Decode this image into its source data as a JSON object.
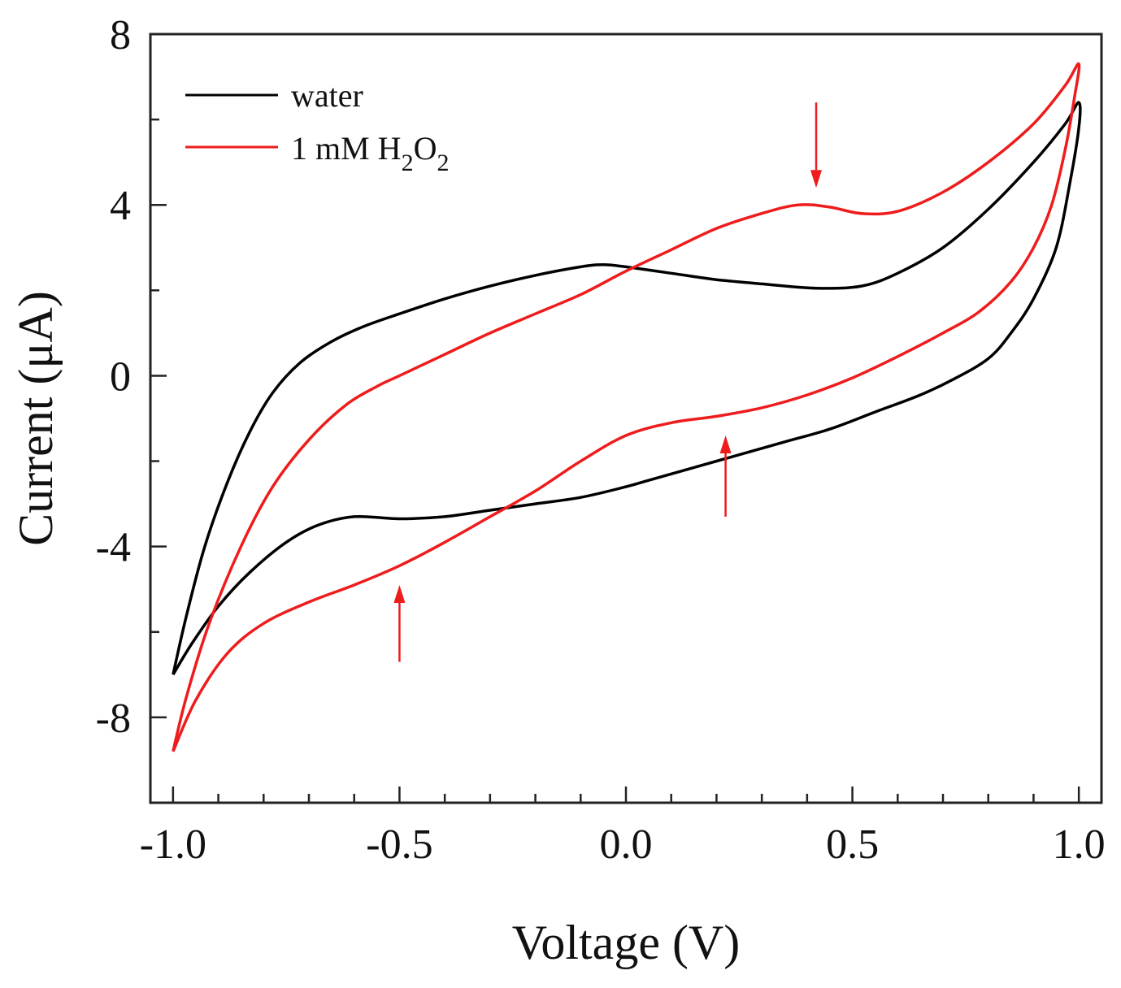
{
  "chart_data": {
    "type": "line",
    "title": "",
    "xlabel": "Voltage (V)",
    "ylabel": "Current (μA)",
    "xlim": [
      -1.05,
      1.05
    ],
    "ylim": [
      -10,
      8
    ],
    "xticks": [
      -1.0,
      -0.5,
      0.0,
      0.5,
      1.0
    ],
    "xtick_labels": [
      "-1.0",
      "-0.5",
      "0.0",
      "0.5",
      "1.0"
    ],
    "yticks": [
      -8,
      -4,
      0,
      4,
      8
    ],
    "ytick_labels": [
      "-8",
      "-4",
      "0",
      "4",
      "8"
    ],
    "grid": false,
    "legend_position": "top-left",
    "series": [
      {
        "name": "water",
        "color": "#000000",
        "points": [
          [
            -1.0,
            -7.0
          ],
          [
            -0.97,
            -5.6
          ],
          [
            -0.93,
            -4.0
          ],
          [
            -0.88,
            -2.5
          ],
          [
            -0.83,
            -1.3
          ],
          [
            -0.78,
            -0.4
          ],
          [
            -0.72,
            0.3
          ],
          [
            -0.65,
            0.8
          ],
          [
            -0.58,
            1.15
          ],
          [
            -0.5,
            1.45
          ],
          [
            -0.4,
            1.8
          ],
          [
            -0.3,
            2.1
          ],
          [
            -0.2,
            2.35
          ],
          [
            -0.1,
            2.55
          ],
          [
            -0.05,
            2.6
          ],
          [
            0.0,
            2.55
          ],
          [
            0.1,
            2.4
          ],
          [
            0.2,
            2.25
          ],
          [
            0.3,
            2.15
          ],
          [
            0.42,
            2.05
          ],
          [
            0.52,
            2.1
          ],
          [
            0.6,
            2.4
          ],
          [
            0.7,
            3.0
          ],
          [
            0.8,
            3.9
          ],
          [
            0.9,
            5.0
          ],
          [
            0.97,
            5.9
          ],
          [
            1.0,
            6.4
          ],
          [
            1.0,
            5.8
          ],
          [
            0.98,
            4.5
          ],
          [
            0.95,
            3.0
          ],
          [
            0.9,
            1.8
          ],
          [
            0.85,
            1.0
          ],
          [
            0.8,
            0.4
          ],
          [
            0.72,
            -0.1
          ],
          [
            0.65,
            -0.45
          ],
          [
            0.55,
            -0.85
          ],
          [
            0.45,
            -1.25
          ],
          [
            0.35,
            -1.55
          ],
          [
            0.25,
            -1.85
          ],
          [
            0.15,
            -2.15
          ],
          [
            0.05,
            -2.45
          ],
          [
            0.0,
            -2.6
          ],
          [
            -0.1,
            -2.85
          ],
          [
            -0.2,
            -3.0
          ],
          [
            -0.3,
            -3.15
          ],
          [
            -0.4,
            -3.3
          ],
          [
            -0.5,
            -3.35
          ],
          [
            -0.6,
            -3.3
          ],
          [
            -0.68,
            -3.5
          ],
          [
            -0.75,
            -3.9
          ],
          [
            -0.83,
            -4.6
          ],
          [
            -0.9,
            -5.4
          ],
          [
            -0.96,
            -6.3
          ],
          [
            -1.0,
            -7.0
          ]
        ]
      },
      {
        "name": "1 mM H2O2",
        "color": "#ee1c1c",
        "points": [
          [
            -1.0,
            -8.8
          ],
          [
            -0.97,
            -7.5
          ],
          [
            -0.92,
            -5.8
          ],
          [
            -0.85,
            -4.0
          ],
          [
            -0.78,
            -2.6
          ],
          [
            -0.7,
            -1.5
          ],
          [
            -0.62,
            -0.7
          ],
          [
            -0.55,
            -0.25
          ],
          [
            -0.5,
            0.0
          ],
          [
            -0.4,
            0.5
          ],
          [
            -0.3,
            1.0
          ],
          [
            -0.2,
            1.45
          ],
          [
            -0.1,
            1.9
          ],
          [
            0.0,
            2.45
          ],
          [
            0.1,
            2.95
          ],
          [
            0.2,
            3.45
          ],
          [
            0.3,
            3.8
          ],
          [
            0.38,
            4.0
          ],
          [
            0.45,
            3.95
          ],
          [
            0.52,
            3.8
          ],
          [
            0.6,
            3.85
          ],
          [
            0.7,
            4.3
          ],
          [
            0.8,
            5.0
          ],
          [
            0.9,
            5.9
          ],
          [
            0.97,
            6.8
          ],
          [
            1.0,
            7.3
          ],
          [
            0.99,
            6.5
          ],
          [
            0.97,
            5.3
          ],
          [
            0.94,
            4.0
          ],
          [
            0.9,
            3.0
          ],
          [
            0.85,
            2.2
          ],
          [
            0.78,
            1.5
          ],
          [
            0.7,
            1.0
          ],
          [
            0.6,
            0.45
          ],
          [
            0.5,
            -0.05
          ],
          [
            0.4,
            -0.45
          ],
          [
            0.3,
            -0.75
          ],
          [
            0.2,
            -0.95
          ],
          [
            0.1,
            -1.1
          ],
          [
            0.0,
            -1.4
          ],
          [
            -0.1,
            -2.0
          ],
          [
            -0.2,
            -2.7
          ],
          [
            -0.3,
            -3.3
          ],
          [
            -0.4,
            -3.9
          ],
          [
            -0.5,
            -4.45
          ],
          [
            -0.6,
            -4.9
          ],
          [
            -0.7,
            -5.3
          ],
          [
            -0.8,
            -5.8
          ],
          [
            -0.88,
            -6.5
          ],
          [
            -0.95,
            -7.6
          ],
          [
            -1.0,
            -8.8
          ]
        ]
      }
    ],
    "annotations": [
      {
        "type": "arrow",
        "direction": "down",
        "x": 0.42,
        "y_from": 6.4,
        "y_to": 4.4,
        "color": "#ee1c1c"
      },
      {
        "type": "arrow",
        "direction": "up",
        "x": 0.22,
        "y_from": -3.3,
        "y_to": -1.4,
        "color": "#ee1c1c"
      },
      {
        "type": "arrow",
        "direction": "up",
        "x": -0.5,
        "y_from": -6.7,
        "y_to": -4.9,
        "color": "#ee1c1c"
      }
    ]
  },
  "legend": {
    "items": [
      {
        "label": "water",
        "color": "#000000"
      },
      {
        "label_main": "1 mM H",
        "sub1": "2",
        "mid": "O",
        "sub2": "2",
        "color": "#ee1c1c"
      }
    ]
  }
}
